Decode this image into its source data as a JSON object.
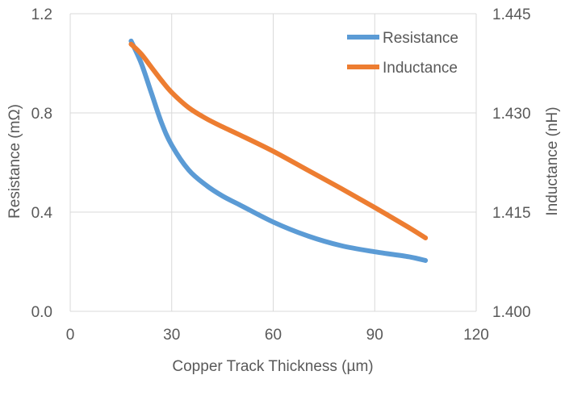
{
  "chart_data": {
    "type": "line",
    "xlabel": "Copper Track Thickness (µm)",
    "ylabel": "Resistance (mΩ)",
    "y2label": "Inductance (nH)",
    "xlim": [
      0,
      120
    ],
    "ylim": [
      0,
      1.2
    ],
    "y2lim": [
      1.4,
      1.445
    ],
    "x_ticks": [
      "0",
      "30",
      "60",
      "90",
      "120"
    ],
    "y_ticks": [
      "0.0",
      "0.4",
      "0.8",
      "1.2"
    ],
    "y2_ticks": [
      "1.400",
      "1.415",
      "1.430",
      "1.445"
    ],
    "grid": true,
    "legend_position": "top-right",
    "series": [
      {
        "name": "Resistance",
        "axis": "left",
        "color": "#5b9bd5",
        "x": [
          18,
          21,
          24,
          27,
          30,
          35,
          40,
          45,
          50,
          60,
          70,
          80,
          90,
          100,
          105
        ],
        "y": [
          1.09,
          1.0,
          0.88,
          0.76,
          0.67,
          0.57,
          0.51,
          0.465,
          0.43,
          0.36,
          0.305,
          0.265,
          0.24,
          0.22,
          0.205
        ]
      },
      {
        "name": "Inductance",
        "axis": "right",
        "color": "#ed7d31",
        "x": [
          18,
          21,
          24,
          27,
          30,
          35,
          40,
          45,
          50,
          60,
          70,
          80,
          90,
          100,
          105
        ],
        "y": [
          1.4404,
          1.4389,
          1.4369,
          1.4349,
          1.4331,
          1.4308,
          1.4292,
          1.4279,
          1.4267,
          1.4242,
          1.4214,
          1.4186,
          1.4157,
          1.4127,
          1.4111
        ]
      }
    ]
  }
}
